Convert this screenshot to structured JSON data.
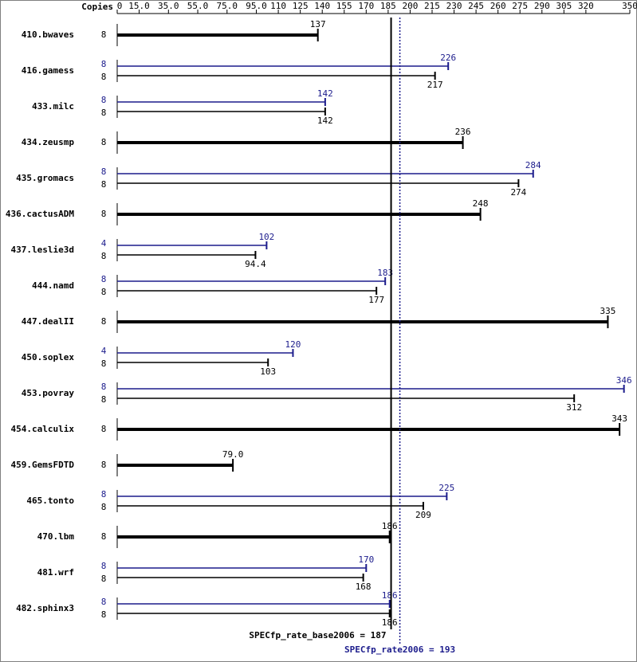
{
  "chart_data": {
    "type": "bar",
    "copies_label": "Copies",
    "categories": [
      "410.bwaves",
      "416.gamess",
      "433.milc",
      "434.zeusmp",
      "435.gromacs",
      "436.cactusADM",
      "437.leslie3d",
      "444.namd",
      "447.dealII",
      "450.soplex",
      "453.povray",
      "454.calculix",
      "459.GemsFDTD",
      "465.tonto",
      "470.lbm",
      "481.wrf",
      "482.sphinx3"
    ],
    "series": [
      {
        "color": "#000000",
        "copies": [
          8,
          8,
          8,
          8,
          8,
          8,
          8,
          8,
          8,
          8,
          8,
          8,
          8,
          8,
          8,
          8,
          8
        ],
        "values": [
          137,
          217,
          142,
          236,
          274,
          248,
          94.4,
          177,
          335,
          103,
          312,
          343,
          79.0,
          209,
          186,
          168,
          186
        ],
        "value_labels": [
          "137",
          "217",
          "142",
          "236",
          "274",
          "248",
          "94.4",
          "177",
          "335",
          "103",
          "312",
          "343",
          "79.0",
          "209",
          "186",
          "168",
          "186"
        ]
      },
      {
        "color": "#1c1c8c",
        "copies": [
          null,
          8,
          8,
          null,
          8,
          null,
          4,
          8,
          null,
          4,
          8,
          null,
          null,
          8,
          null,
          8,
          8
        ],
        "values": [
          null,
          226,
          142,
          null,
          284,
          null,
          102,
          183,
          null,
          120,
          346,
          null,
          null,
          225,
          null,
          170,
          186
        ]
      }
    ],
    "xlim": [
      0,
      350
    ],
    "xticks": [
      0,
      {
        "value": 15,
        "label": "15.0"
      },
      {
        "value": 35,
        "label": "35.0"
      },
      {
        "value": 55,
        "label": "55.0"
      },
      {
        "value": 75,
        "label": "75.0"
      },
      {
        "value": 95,
        "label": "95.0"
      },
      110,
      125,
      140,
      155,
      170,
      185,
      200,
      215,
      230,
      245,
      260,
      275,
      290,
      305,
      320,
      350
    ],
    "reference_lines": [
      {
        "value": 187,
        "label": "SPECfp_rate_base2006 = 187",
        "color": "#000000",
        "dashed": false
      },
      {
        "value": 193,
        "label": "SPECfp_rate2006 = 193",
        "color": "#1c1c8c",
        "dashed": true
      }
    ]
  }
}
